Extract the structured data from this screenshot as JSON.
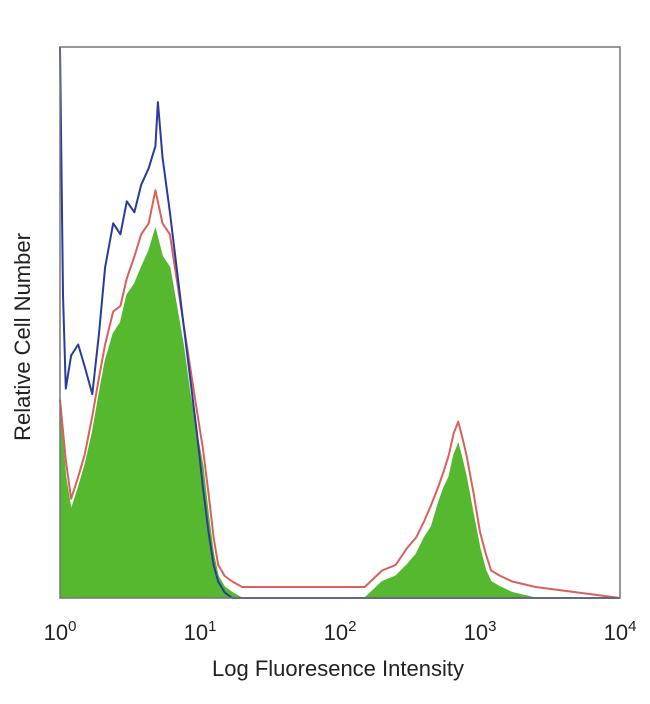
{
  "chart_data": {
    "type": "area",
    "title": "",
    "xlabel": "Log Fluoresence Intensity",
    "ylabel": "Relative Cell Number",
    "x_scale": "log",
    "xlim": [
      1,
      10000
    ],
    "ylim": [
      0,
      1
    ],
    "grid": false,
    "legend": "none",
    "x_ticks": [
      {
        "base": "10",
        "exp": "0"
      },
      {
        "base": "10",
        "exp": "1"
      },
      {
        "base": "10",
        "exp": "2"
      },
      {
        "base": "10",
        "exp": "3"
      },
      {
        "base": "10",
        "exp": "4"
      }
    ],
    "series": [
      {
        "color": "#55b82e",
        "style": "filled",
        "x": [
          1.0,
          1.1,
          1.2,
          1.35,
          1.5,
          1.7,
          1.9,
          2.1,
          2.4,
          2.7,
          3.0,
          3.4,
          3.8,
          4.3,
          4.8,
          5.4,
          6.1,
          6.8,
          7.6,
          8.5,
          9.5,
          10.5,
          11.5,
          12.5,
          13.5,
          15,
          17,
          20,
          50,
          150,
          200,
          250,
          300,
          350,
          400,
          450,
          500,
          550,
          600,
          650,
          700,
          750,
          800,
          900,
          1000,
          1100,
          1200,
          1400,
          1700,
          2500,
          10000
        ],
        "y": [
          0.34,
          0.22,
          0.16,
          0.2,
          0.24,
          0.3,
          0.37,
          0.43,
          0.48,
          0.5,
          0.55,
          0.57,
          0.6,
          0.63,
          0.67,
          0.62,
          0.6,
          0.53,
          0.46,
          0.37,
          0.3,
          0.24,
          0.15,
          0.08,
          0.04,
          0.02,
          0.01,
          0.0,
          0.0,
          0.0,
          0.03,
          0.04,
          0.06,
          0.08,
          0.11,
          0.13,
          0.17,
          0.2,
          0.22,
          0.26,
          0.28,
          0.25,
          0.22,
          0.15,
          0.09,
          0.05,
          0.03,
          0.02,
          0.01,
          0.0,
          0.0
        ]
      },
      {
        "color": "#d9605c",
        "style": "line",
        "x": [
          1.0,
          1.1,
          1.2,
          1.35,
          1.5,
          1.7,
          1.9,
          2.1,
          2.4,
          2.7,
          3.0,
          3.4,
          3.8,
          4.3,
          4.8,
          5.4,
          6.1,
          6.8,
          7.6,
          8.5,
          9.5,
          10.5,
          11.5,
          12.5,
          13.5,
          15,
          17,
          20,
          50,
          150,
          200,
          250,
          300,
          350,
          400,
          450,
          500,
          550,
          600,
          650,
          700,
          750,
          800,
          900,
          1000,
          1100,
          1200,
          1400,
          1700,
          2500,
          10000
        ],
        "y": [
          0.36,
          0.25,
          0.18,
          0.22,
          0.26,
          0.33,
          0.4,
          0.46,
          0.52,
          0.53,
          0.58,
          0.62,
          0.66,
          0.68,
          0.74,
          0.68,
          0.66,
          0.58,
          0.5,
          0.42,
          0.34,
          0.27,
          0.19,
          0.11,
          0.06,
          0.04,
          0.03,
          0.02,
          0.02,
          0.02,
          0.05,
          0.06,
          0.09,
          0.11,
          0.14,
          0.17,
          0.2,
          0.23,
          0.26,
          0.3,
          0.32,
          0.29,
          0.26,
          0.19,
          0.12,
          0.08,
          0.05,
          0.04,
          0.03,
          0.02,
          0.0
        ]
      },
      {
        "color": "#2b3b9b",
        "style": "line",
        "x": [
          1.0,
          1.05,
          1.1,
          1.2,
          1.35,
          1.5,
          1.7,
          1.9,
          2.1,
          2.4,
          2.7,
          3.0,
          3.4,
          3.8,
          4.3,
          4.8,
          5.0,
          5.4,
          6.1,
          6.8,
          7.6,
          8.5,
          9.5,
          10.5,
          11.5,
          12.5,
          13.5,
          15,
          17,
          20,
          10000
        ],
        "y": [
          1.0,
          0.55,
          0.38,
          0.44,
          0.46,
          0.42,
          0.37,
          0.48,
          0.6,
          0.68,
          0.66,
          0.72,
          0.7,
          0.75,
          0.78,
          0.82,
          0.9,
          0.8,
          0.7,
          0.6,
          0.5,
          0.4,
          0.3,
          0.2,
          0.12,
          0.06,
          0.03,
          0.01,
          0.0,
          0.0,
          0.0
        ]
      }
    ]
  }
}
